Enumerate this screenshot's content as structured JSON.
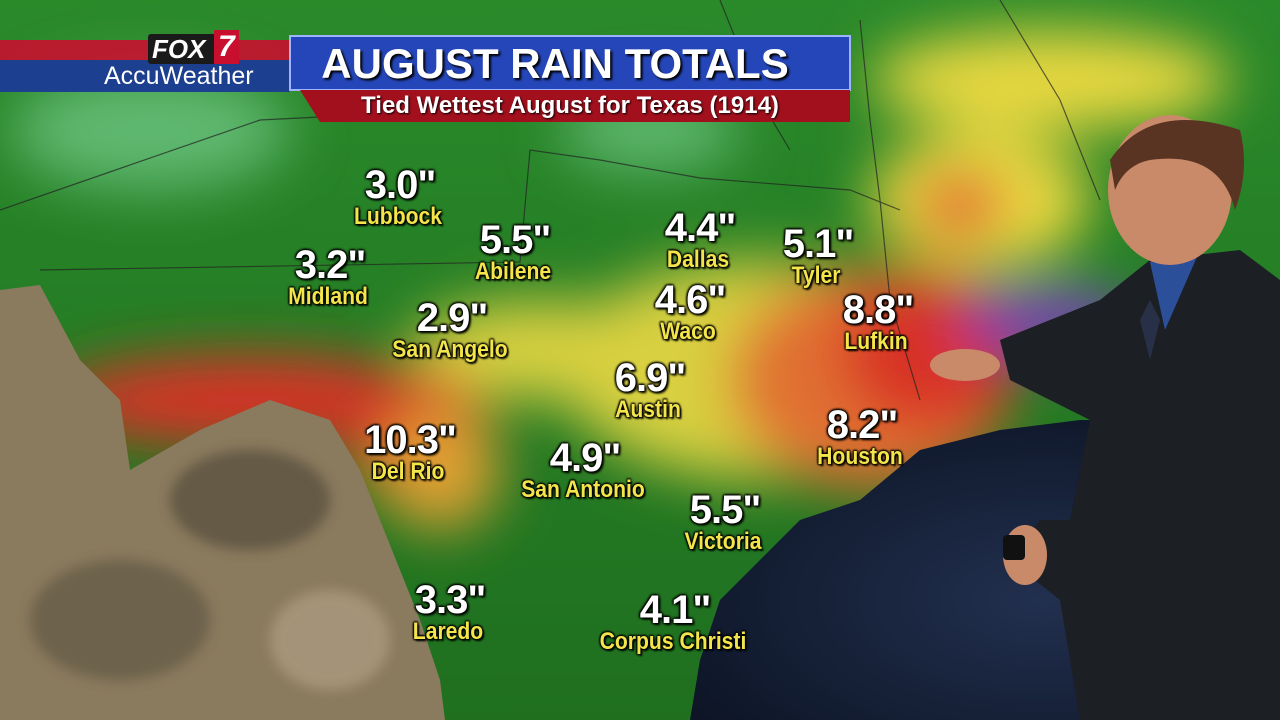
{
  "header": {
    "logo_top": "FOX",
    "logo_num": "7",
    "logo_bottom": "AccuWeather",
    "title": "AUGUST RAIN TOTALS",
    "subtitle": "Tied Wettest August for Texas (1914)"
  },
  "cities": [
    {
      "value": "3.0\"",
      "name": "Lubbock"
    },
    {
      "value": "3.2\"",
      "name": "Midland"
    },
    {
      "value": "5.5\"",
      "name": "Abilene"
    },
    {
      "value": "2.9\"",
      "name": "San Angelo"
    },
    {
      "value": "4.4\"",
      "name": "Dallas"
    },
    {
      "value": "5.1\"",
      "name": "Tyler"
    },
    {
      "value": "4.6\"",
      "name": "Waco"
    },
    {
      "value": "8.8\"",
      "name": "Lufkin"
    },
    {
      "value": "6.9\"",
      "name": "Austin"
    },
    {
      "value": "10.3\"",
      "name": "Del Rio"
    },
    {
      "value": "4.9\"",
      "name": "San Antonio"
    },
    {
      "value": "8.2\"",
      "name": "Houston"
    },
    {
      "value": "5.5\"",
      "name": "Victoria"
    },
    {
      "value": "3.3\"",
      "name": "Laredo"
    },
    {
      "value": "4.1\"",
      "name": "Corpus Christi"
    }
  ]
}
